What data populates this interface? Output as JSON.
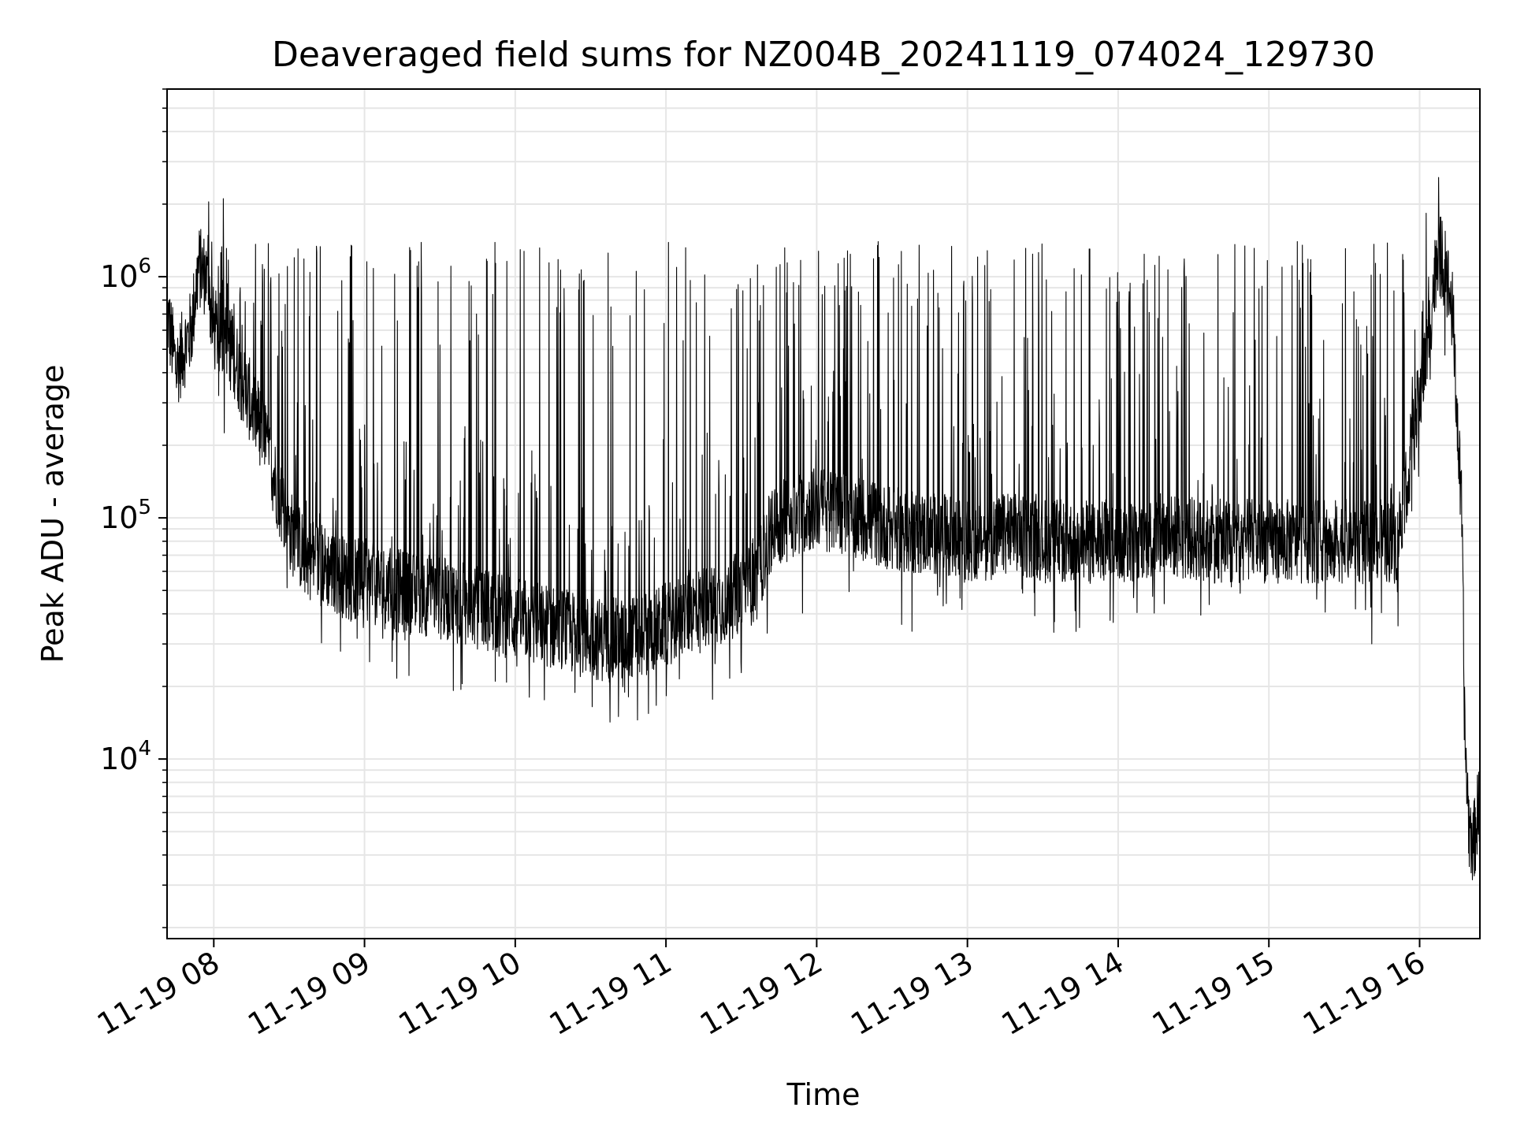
{
  "chart_data": {
    "type": "line",
    "title": "Deaveraged field sums for NZ004B_20241119_074024_129730",
    "xlabel": "Time",
    "ylabel": "Peak ADU - average",
    "x_ticks": [
      "11-19 08",
      "11-19 09",
      "11-19 10",
      "11-19 11",
      "11-19 12",
      "11-19 13",
      "11-19 14",
      "11-19 15",
      "11-19 16"
    ],
    "y_ticks": [
      {
        "base": "10",
        "exp": "4",
        "value": 10000
      },
      {
        "base": "10",
        "exp": "5",
        "value": 100000
      },
      {
        "base": "10",
        "exp": "6",
        "value": 1000000
      }
    ],
    "x_range_hours": [
      7.69,
      16.4
    ],
    "ylim": [
      1800,
      6000000
    ],
    "yscale": "log",
    "grid": true,
    "line_color": "#000000",
    "grid_color": "#e6e6e6",
    "series": [
      {
        "x_hours": [
          7.69,
          7.75,
          7.8,
          7.85,
          7.9,
          7.95,
          8.0,
          8.1,
          8.2,
          8.3,
          8.4,
          8.5,
          8.6,
          8.7,
          8.8,
          8.9,
          9.0,
          9.2,
          9.4,
          9.6,
          9.8,
          10.0,
          10.2,
          10.4,
          10.6,
          10.8,
          11.0,
          11.2,
          11.4,
          11.6,
          11.7,
          11.8,
          12.0,
          12.2,
          12.5,
          12.8,
          13.0,
          13.3,
          13.6,
          14.0,
          14.3,
          14.6,
          15.0,
          15.3,
          15.6,
          15.85,
          15.95,
          16.05,
          16.12,
          16.18,
          16.22,
          16.25,
          16.28,
          16.3,
          16.33,
          16.36,
          16.4
        ],
        "values": [
          700000,
          420000,
          500000,
          600000,
          1100000,
          1000000,
          600000,
          550000,
          350000,
          250000,
          150000,
          90000,
          70000,
          65000,
          60000,
          55000,
          55000,
          50000,
          48000,
          45000,
          42000,
          38000,
          36000,
          33000,
          31000,
          32000,
          36000,
          42000,
          45000,
          55000,
          90000,
          100000,
          110000,
          105000,
          90000,
          85000,
          80000,
          85000,
          80000,
          78000,
          85000,
          80000,
          80000,
          80000,
          80000,
          80000,
          200000,
          500000,
          1300000,
          1000000,
          700000,
          250000,
          100000,
          12000,
          5000,
          4500,
          7000
        ]
      }
    ]
  }
}
